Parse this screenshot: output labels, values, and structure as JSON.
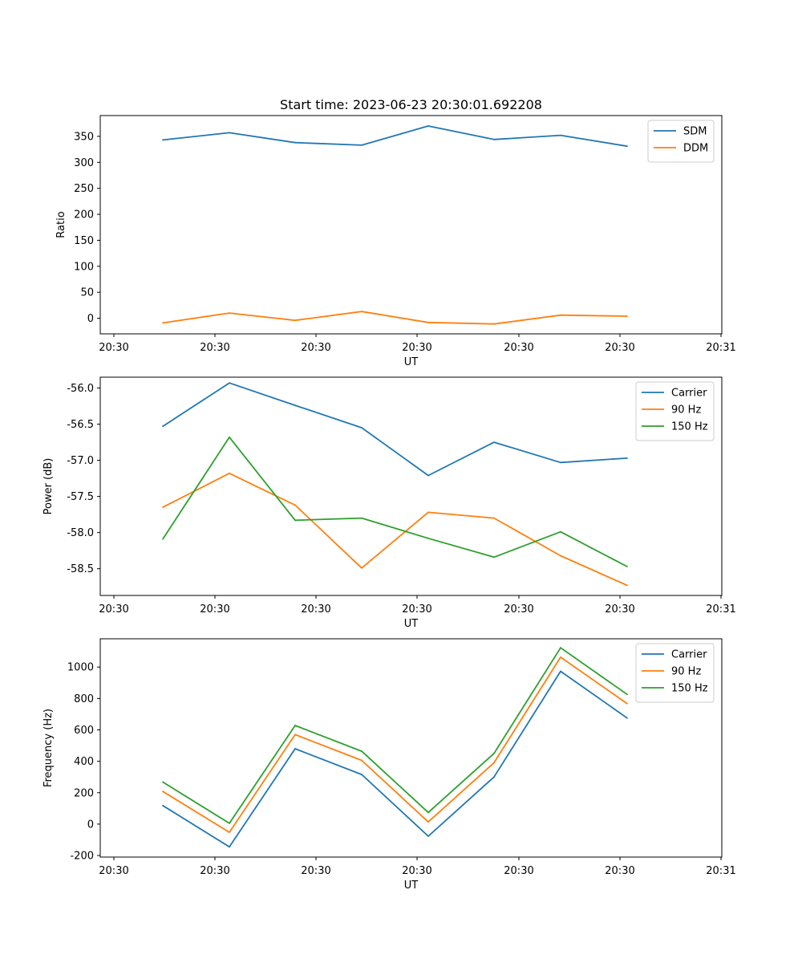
{
  "figure": {
    "title": "Start time: 2023-06-23 20:30:01.692208"
  },
  "x_ticks": [
    "20:30",
    "20:30",
    "20:30",
    "20:30",
    "20:30",
    "20:30",
    "20:30",
    "20:31"
  ],
  "chart_data": [
    {
      "type": "line",
      "title": "Start time: 2023-06-23 20:30:01.692208",
      "xlabel": "UT",
      "ylabel": "Ratio",
      "ylim": [
        -30,
        390
      ],
      "yticks": [
        0,
        50,
        100,
        150,
        200,
        250,
        300,
        350
      ],
      "legend": "top-right",
      "series": [
        {
          "name": "SDM",
          "color": "#1f77b4",
          "values": [
            343,
            357,
            338,
            333,
            370,
            344,
            352,
            331
          ]
        },
        {
          "name": "DDM",
          "color": "#ff7f0e",
          "values": [
            -9,
            10,
            -4,
            13,
            -8,
            -11,
            6,
            4
          ]
        }
      ]
    },
    {
      "type": "line",
      "title": "",
      "xlabel": "UT",
      "ylabel": "Power (dB)",
      "ylim": [
        -58.87,
        -55.85
      ],
      "yticks": [
        -56.0,
        -56.5,
        -57.0,
        -57.5,
        -58.0,
        -58.5
      ],
      "legend": "top-right",
      "series": [
        {
          "name": "Carrier",
          "color": "#1f77b4",
          "values": [
            -56.53,
            -55.93,
            -56.24,
            -56.55,
            -57.21,
            -56.75,
            -57.03,
            -56.97
          ]
        },
        {
          "name": "90 Hz",
          "color": "#ff7f0e",
          "values": [
            -57.65,
            -57.18,
            -57.62,
            -58.49,
            -57.72,
            -57.8,
            -58.32,
            -58.73
          ]
        },
        {
          "name": "150 Hz",
          "color": "#2ca02c",
          "values": [
            -58.09,
            -56.68,
            -57.83,
            -57.8,
            -58.08,
            -58.34,
            -57.99,
            -58.47
          ]
        }
      ]
    },
    {
      "type": "line",
      "title": "",
      "xlabel": "UT",
      "ylabel": "Frequency (Hz)",
      "ylim": [
        -210,
        1180
      ],
      "yticks": [
        -200,
        0,
        200,
        400,
        600,
        800,
        1000
      ],
      "legend": "top-right",
      "series": [
        {
          "name": "Carrier",
          "color": "#1f77b4",
          "values": [
            118,
            -145,
            480,
            316,
            -77,
            300,
            973,
            675
          ]
        },
        {
          "name": "90 Hz",
          "color": "#ff7f0e",
          "values": [
            208,
            -52,
            570,
            406,
            14,
            391,
            1063,
            767
          ]
        },
        {
          "name": "150 Hz",
          "color": "#2ca02c",
          "values": [
            268,
            5,
            628,
            464,
            74,
            450,
            1123,
            826
          ]
        }
      ]
    }
  ]
}
